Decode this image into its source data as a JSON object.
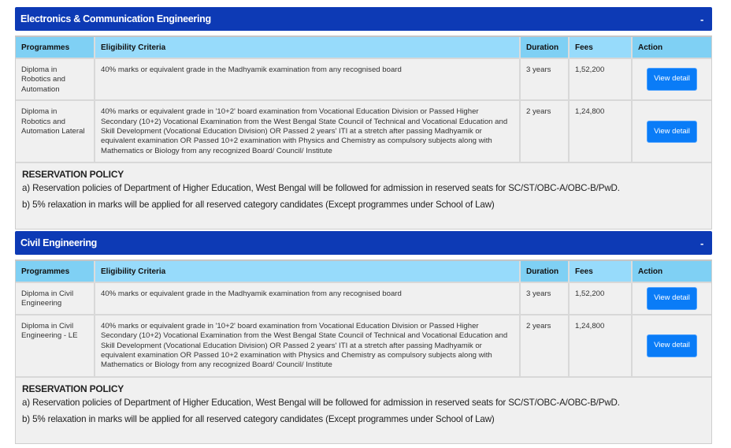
{
  "headers": {
    "programmes": "Programmes",
    "eligibility": "Eligibility Criteria",
    "duration": "Duration",
    "fees": "Fees",
    "action": "Action"
  },
  "reservation": {
    "title": "RESERVATION POLICY",
    "a": "a) Reservation policies of Department of Higher Education, West Bengal will be followed for admission in reserved seats for SC/ST/OBC-A/OBC-B/PwD.",
    "b": "b) 5% relaxation in marks will be applied for all reserved category candidates (Except programmes under School of Law)"
  },
  "colors": {
    "header_bar": "#0d3ab5",
    "button": "#0a7cf7",
    "table_header": "#97dbfb"
  },
  "sections": [
    {
      "title": "Electronics & Communication Engineering",
      "toggle": "-",
      "rows": [
        {
          "programme": "Diploma in Robotics and Automation",
          "eligibility": "40% marks or equivalent grade in the Madhyamik examination from any recognised board",
          "duration": "3 years",
          "fees": "1,52,200",
          "action": "View detail"
        },
        {
          "programme": "Diploma in Robotics and Automation Lateral",
          "eligibility": "40% marks or equivalent grade in '10+2' board examination from Vocational Education Division or Passed Higher Secondary (10+2) Vocational Examination from the West Bengal State Council of Technical and Vocational Education and Skill Development (Vocational Education Division) OR Passed 2 years' ITI at a stretch after passing Madhyamik or equivalent examination OR Passed 10+2 examination with Physics and Chemistry as compulsory subjects along with Mathematics or Biology from any recognized Board/ Council/ Institute",
          "duration": "2 years",
          "fees": "1,24,800",
          "action": "View detail"
        }
      ]
    },
    {
      "title": "Civil Engineering",
      "toggle": "-",
      "rows": [
        {
          "programme": "Diploma in Civil Engineering",
          "eligibility": "40% marks or equivalent grade in the Madhyamik examination from any recognised board",
          "duration": "3 years",
          "fees": "1,52,200",
          "action": "View detail"
        },
        {
          "programme": "Diploma in Civil Engineering - LE",
          "eligibility": "40% marks or equivalent grade in '10+2' board examination from Vocational Education Division or Passed Higher Secondary (10+2) Vocational Examination from the West Bengal State Council of Technical and Vocational Education and Skill Development (Vocational Education Division) OR Passed 2 years' ITI at a stretch after passing Madhyamik or equivalent examination OR Passed 10+2 examination with Physics and Chemistry as compulsory subjects along with Mathematics or Biology from any recognized Board/ Council/ Institute",
          "duration": "2 years",
          "fees": "1,24,800",
          "action": "View detail"
        }
      ]
    }
  ]
}
